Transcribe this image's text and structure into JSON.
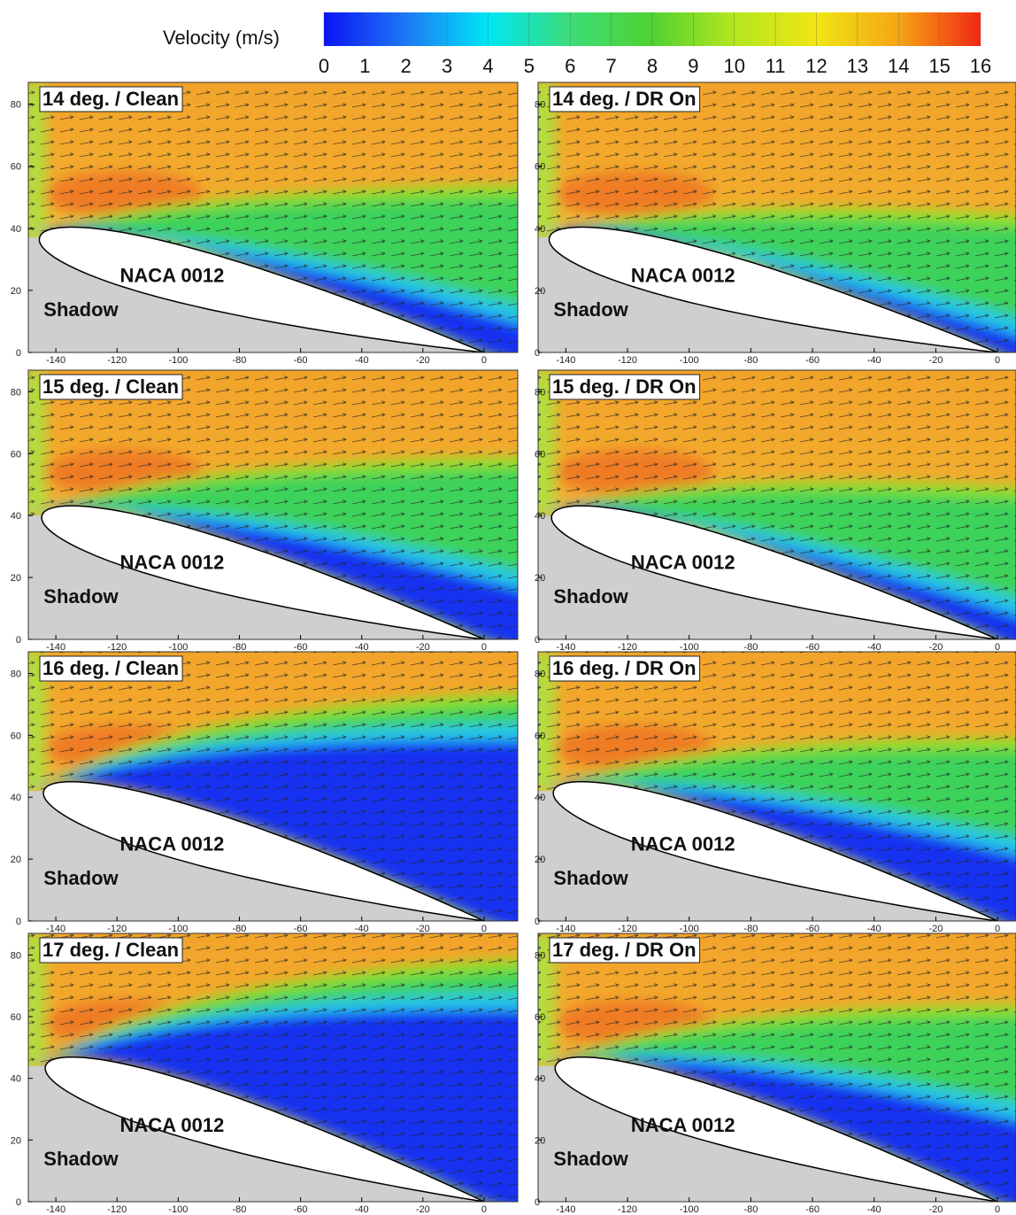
{
  "chart_data": [
    {
      "type": "colorbar",
      "title": "Velocity (m/s)",
      "lim": [
        0,
        16
      ],
      "ticks": [
        0,
        1,
        2,
        3,
        4,
        5,
        6,
        7,
        8,
        9,
        10,
        11,
        12,
        13,
        14,
        15,
        16
      ],
      "colors": [
        "#0a14f5",
        "#1e78f5",
        "#00e6f5",
        "#3cdc78",
        "#50d232",
        "#b4e61e",
        "#f0e614",
        "#f5a514",
        "#f02814"
      ]
    },
    {
      "type": "contour",
      "title": "14 deg. / Clean",
      "annotations": [
        "NACA 0012",
        "Shadow"
      ],
      "xlim": [
        -149,
        11
      ],
      "ylim": [
        0,
        87
      ],
      "xticks": [
        -140,
        -120,
        -100,
        -80,
        -60,
        -40,
        -20,
        0
      ],
      "yticks": [
        0,
        20,
        40,
        60,
        80
      ]
    },
    {
      "type": "contour",
      "title": "14 deg. / DR On",
      "annotations": [
        "NACA 0012",
        "Shadow"
      ],
      "xlim": [
        -149,
        6
      ],
      "ylim": [
        0,
        87
      ],
      "xticks": [
        -140,
        -120,
        -100,
        -80,
        -60,
        -40,
        -20,
        0
      ],
      "yticks": [
        0,
        20,
        40,
        60,
        80
      ]
    },
    {
      "type": "contour",
      "title": "15 deg. / Clean",
      "annotations": [
        "NACA 0012",
        "Shadow"
      ],
      "xlim": [
        -149,
        11
      ],
      "ylim": [
        0,
        87
      ],
      "xticks": [
        -140,
        -120,
        -100,
        -80,
        -60,
        -40,
        -20,
        0
      ],
      "yticks": [
        0,
        20,
        40,
        60,
        80
      ]
    },
    {
      "type": "contour",
      "title": "15 deg. / DR On",
      "annotations": [
        "NACA 0012",
        "Shadow"
      ],
      "xlim": [
        -149,
        6
      ],
      "ylim": [
        0,
        87
      ],
      "xticks": [
        -140,
        -120,
        -100,
        -80,
        -60,
        -40,
        -20,
        0
      ],
      "yticks": [
        0,
        20,
        40,
        60,
        80
      ]
    },
    {
      "type": "contour",
      "title": "16 deg. / Clean",
      "annotations": [
        "NACA 0012",
        "Shadow"
      ],
      "xlim": [
        -149,
        11
      ],
      "ylim": [
        0,
        87
      ],
      "xticks": [
        -140,
        -120,
        -100,
        -80,
        -60,
        -40,
        -20,
        0
      ],
      "yticks": [
        0,
        20,
        40,
        60,
        80
      ]
    },
    {
      "type": "contour",
      "title": "16 deg. / DR On",
      "annotations": [
        "NACA 0012",
        "Shadow"
      ],
      "xlim": [
        -149,
        6
      ],
      "ylim": [
        0,
        87
      ],
      "xticks": [
        -140,
        -120,
        -100,
        -80,
        -60,
        -40,
        -20,
        0
      ],
      "yticks": [
        0,
        20,
        40,
        60,
        80
      ]
    },
    {
      "type": "contour",
      "title": "17 deg. / Clean",
      "annotations": [
        "NACA 0012",
        "Shadow"
      ],
      "xlim": [
        -149,
        11
      ],
      "ylim": [
        0,
        87
      ],
      "xticks": [
        -140,
        -120,
        -100,
        -80,
        -60,
        -40,
        -20,
        0
      ],
      "yticks": [
        0,
        20,
        40,
        60,
        80
      ]
    },
    {
      "type": "contour",
      "title": "17 deg. / DR On",
      "annotations": [
        "NACA 0012",
        "Shadow"
      ],
      "xlim": [
        -149,
        6
      ],
      "ylim": [
        0,
        87
      ],
      "xticks": [
        -140,
        -120,
        -100,
        -80,
        -60,
        -40,
        -20,
        0
      ],
      "yticks": [
        0,
        20,
        40,
        60,
        80
      ]
    }
  ]
}
